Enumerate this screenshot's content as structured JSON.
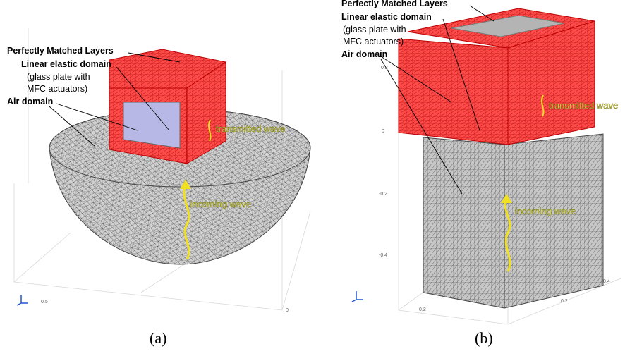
{
  "panels": [
    {
      "caption": "(a)",
      "labels": {
        "pml": "Perfectly Matched Layers",
        "linear": "Linear elastic domain",
        "linear_note": [
          "(glass plate with",
          "MFC actuators)"
        ],
        "air": "Air domain"
      },
      "waves": [
        "transmitted wave",
        "incoming wave"
      ],
      "axis_ticks": [
        "0.5",
        "0"
      ]
    },
    {
      "caption": "(b)",
      "labels": {
        "pml": "Perfectly Matched Layers",
        "linear": "Linear elastic domain",
        "linear_note": [
          "(glass plate with",
          "MFC actuators)"
        ],
        "air": "Air domain"
      },
      "waves": [
        "transmitted wave",
        "incoming wave"
      ],
      "axis_ticks": [
        "0.2",
        "0",
        "-0.2",
        "-0.4",
        "0.2",
        "0.2",
        "0.4"
      ]
    }
  ]
}
